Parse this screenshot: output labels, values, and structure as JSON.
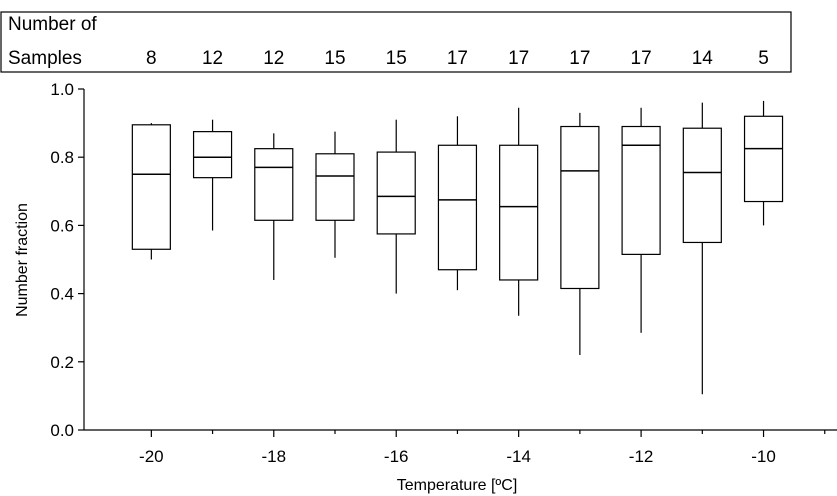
{
  "chart_data": {
    "type": "box",
    "xlabel": "Temperature [ºC]",
    "ylabel": "Number fraction",
    "xlim": [
      -21.1,
      -8.8
    ],
    "ylim": [
      0.0,
      1.0
    ],
    "x_ticks": [
      -20,
      -18,
      -16,
      -14,
      -12,
      -10
    ],
    "x_minor_ticks": [
      -19,
      -17,
      -15,
      -13,
      -11,
      -9
    ],
    "y_ticks": [
      "0.0",
      "0.2",
      "0.4",
      "0.6",
      "0.8",
      "1.0"
    ],
    "grid": false,
    "samples_header": {
      "line1": "Number of",
      "line2": "Samples"
    },
    "boxes": [
      {
        "x": -20,
        "min": 0.5,
        "q1": 0.53,
        "median": 0.75,
        "q3": 0.895,
        "max": 0.9,
        "n": "8"
      },
      {
        "x": -19,
        "min": 0.585,
        "q1": 0.74,
        "median": 0.8,
        "q3": 0.875,
        "max": 0.91,
        "n": "12"
      },
      {
        "x": -18,
        "min": 0.44,
        "q1": 0.615,
        "median": 0.77,
        "q3": 0.825,
        "max": 0.87,
        "n": "12"
      },
      {
        "x": -17,
        "min": 0.505,
        "q1": 0.615,
        "median": 0.745,
        "q3": 0.81,
        "max": 0.875,
        "n": "15"
      },
      {
        "x": -16,
        "min": 0.4,
        "q1": 0.575,
        "median": 0.685,
        "q3": 0.815,
        "max": 0.91,
        "n": "15"
      },
      {
        "x": -15,
        "min": 0.41,
        "q1": 0.47,
        "median": 0.675,
        "q3": 0.835,
        "max": 0.92,
        "n": "17"
      },
      {
        "x": -14,
        "min": 0.335,
        "q1": 0.44,
        "median": 0.655,
        "q3": 0.835,
        "max": 0.945,
        "n": "17"
      },
      {
        "x": -13,
        "min": 0.22,
        "q1": 0.415,
        "median": 0.76,
        "q3": 0.89,
        "max": 0.93,
        "n": "17"
      },
      {
        "x": -12,
        "min": 0.285,
        "q1": 0.515,
        "median": 0.835,
        "q3": 0.89,
        "max": 0.945,
        "n": "17"
      },
      {
        "x": -11,
        "min": 0.105,
        "q1": 0.55,
        "median": 0.755,
        "q3": 0.885,
        "max": 0.96,
        "n": "14"
      },
      {
        "x": -10,
        "min": 0.6,
        "q1": 0.67,
        "median": 0.825,
        "q3": 0.92,
        "max": 0.965,
        "n": "5"
      }
    ]
  }
}
